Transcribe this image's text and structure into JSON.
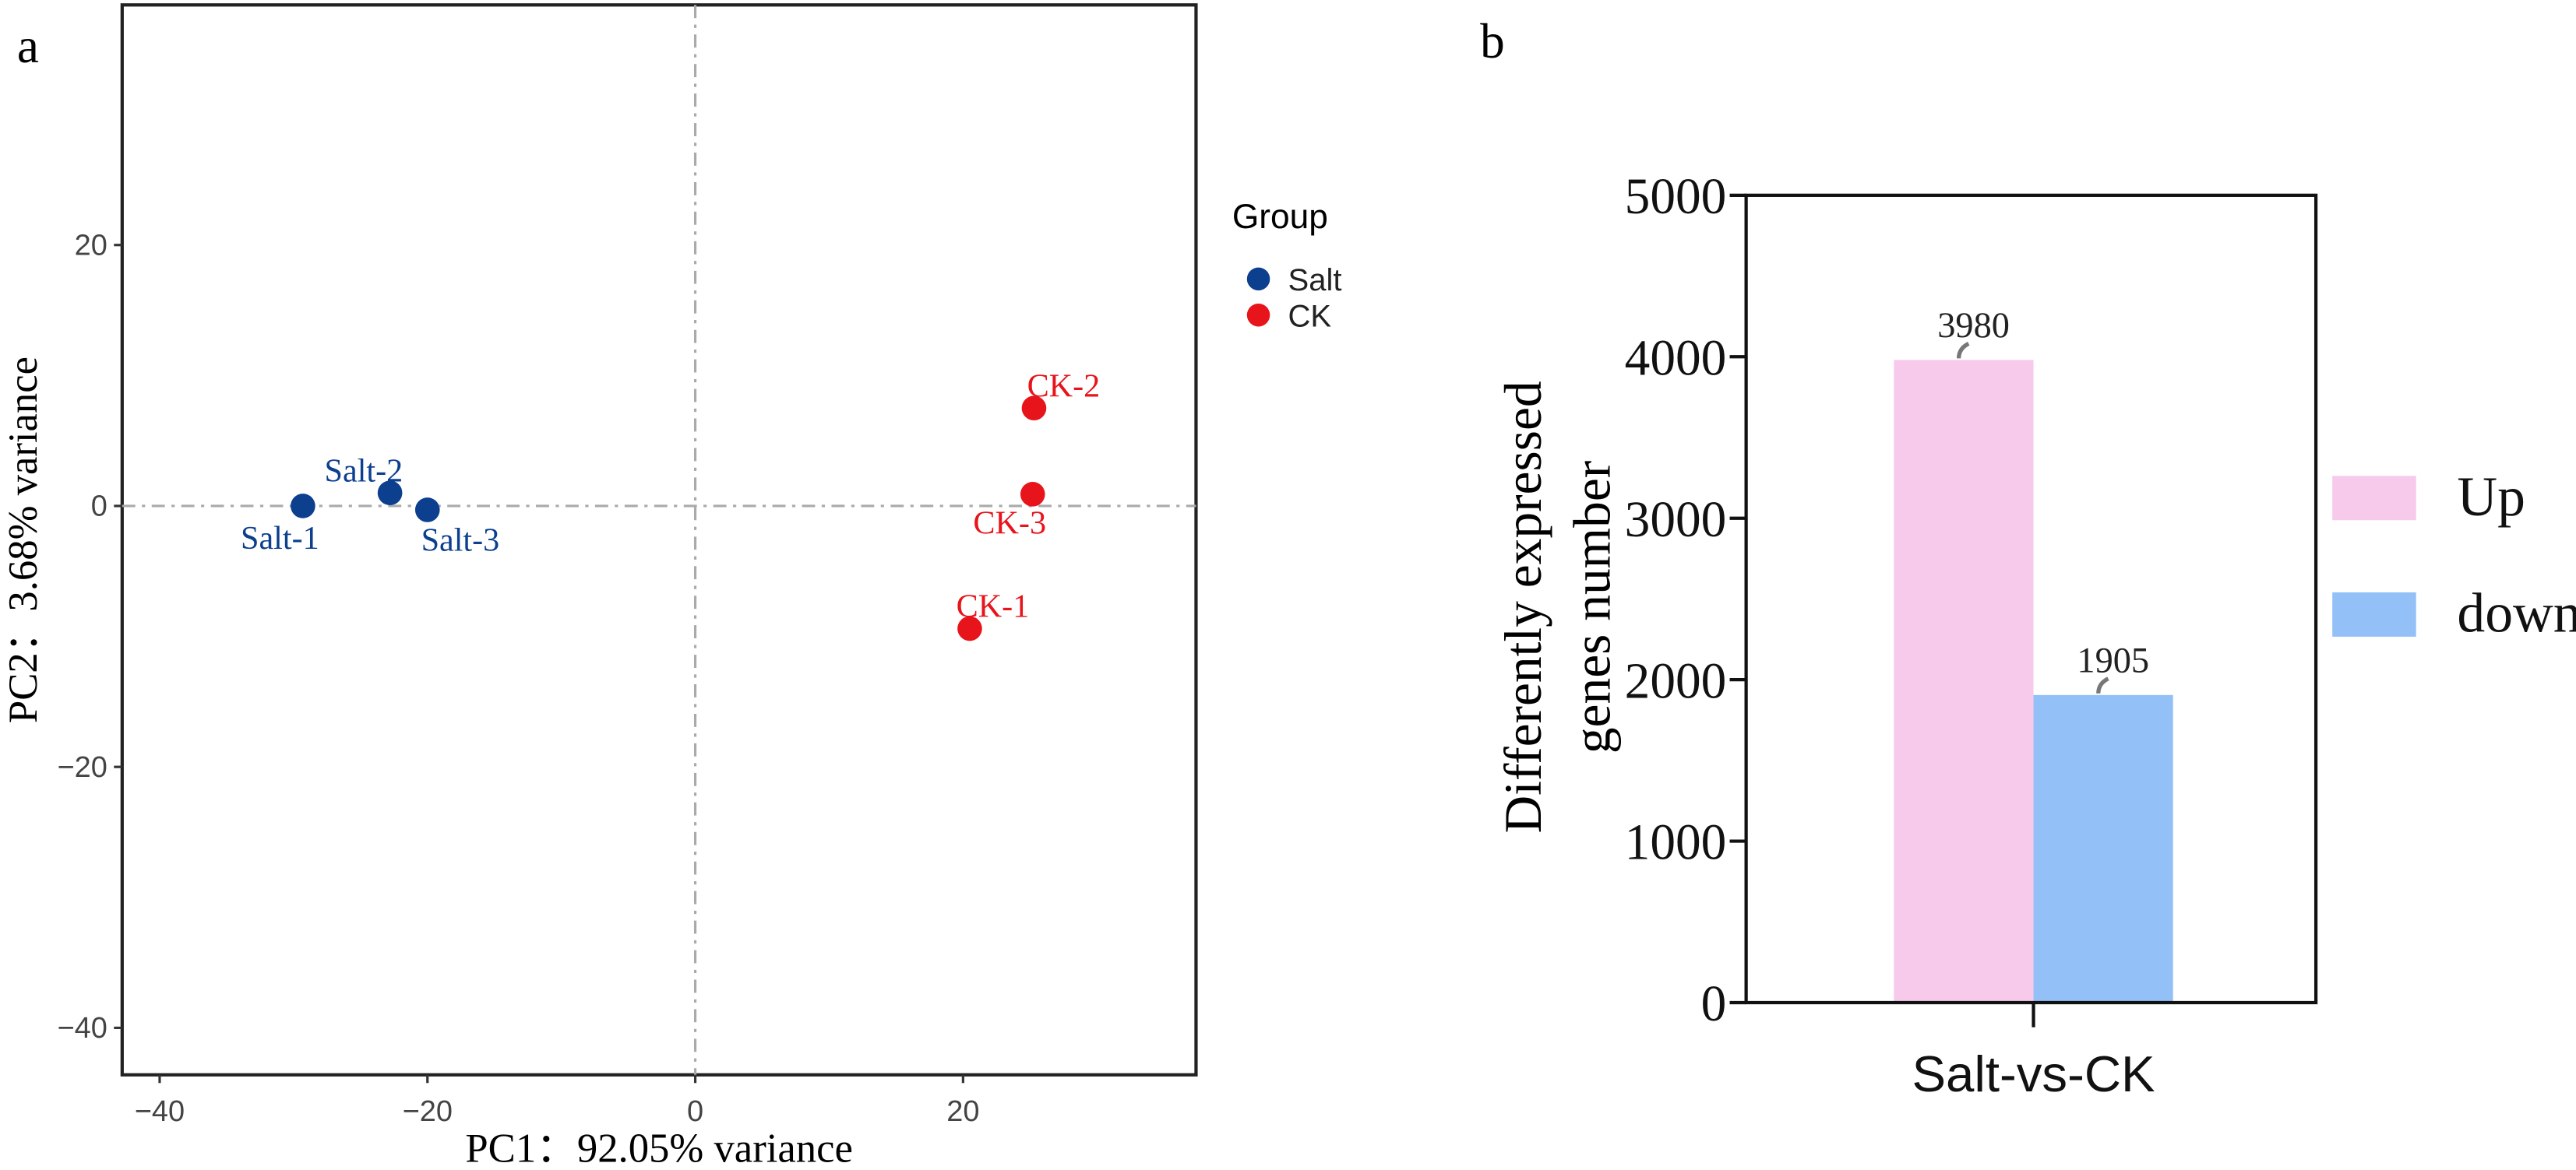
{
  "chart_data": [
    {
      "panel_label": "a",
      "type": "scatter",
      "xlabel": "PC1：92.05% variance",
      "ylabel": "PC2：3.68% variance",
      "xlim": [
        -42.8,
        37.4
      ],
      "ylim": [
        -43.6,
        38.4
      ],
      "xticks": [
        -40,
        -20,
        0,
        20
      ],
      "yticks": [
        -40,
        -20,
        0,
        20
      ],
      "reference_lines": {
        "x": 0,
        "y": 0,
        "style": "dash-dot",
        "color": "#aaaaaa"
      },
      "grid": false,
      "legend": {
        "title": "Group",
        "placement": "right"
      },
      "series": [
        {
          "name": "Salt",
          "color": "#0d3f8f",
          "points": [
            {
              "label": "Salt-1",
              "x": -29.3,
              "y": 0.0
            },
            {
              "label": "Salt-2",
              "x": -22.8,
              "y": 1.0
            },
            {
              "label": "Salt-3",
              "x": -20.0,
              "y": -0.3
            }
          ]
        },
        {
          "name": "CK",
          "color": "#e8141b",
          "points": [
            {
              "label": "CK-1",
              "x": 20.5,
              "y": -9.4
            },
            {
              "label": "CK-2",
              "x": 25.3,
              "y": 7.5
            },
            {
              "label": "CK-3",
              "x": 25.2,
              "y": 0.9
            }
          ]
        }
      ]
    },
    {
      "panel_label": "b",
      "type": "bar",
      "categories": [
        "Salt-vs-CK"
      ],
      "ylabel": [
        "Differently expressed",
        "genes number"
      ],
      "ylim": [
        0,
        5000
      ],
      "yticks": [
        0,
        1000,
        2000,
        3000,
        4000,
        5000
      ],
      "grid": false,
      "legend": {
        "placement": "right"
      },
      "series": [
        {
          "name": "Up",
          "color": "#f7caec",
          "values": [
            3980
          ]
        },
        {
          "name": "down",
          "color": "#93c0f7",
          "values": [
            1905
          ]
        }
      ]
    }
  ]
}
